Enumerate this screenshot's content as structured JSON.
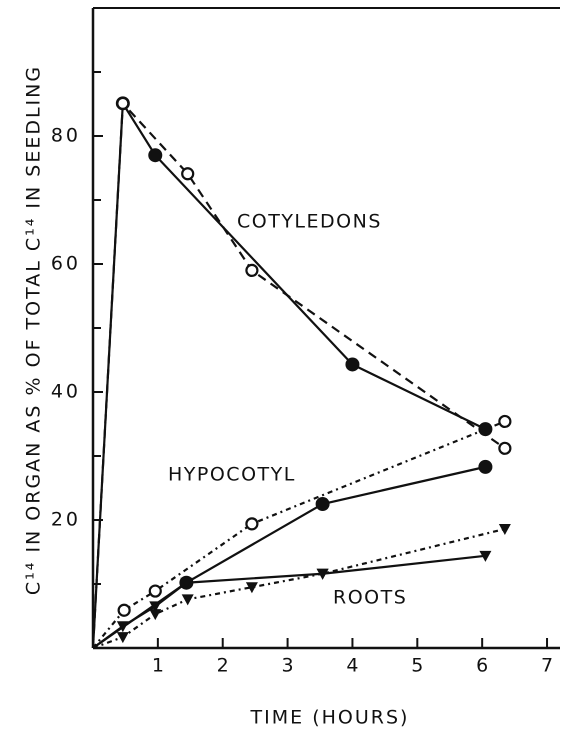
{
  "chart_data": {
    "type": "line",
    "xlabel": "TIME (HOURS)",
    "ylabel": "C¹⁴ IN ORGAN AS % OF TOTAL C¹⁴ IN SEEDLING",
    "xlim": [
      0,
      7.2
    ],
    "xticks": [
      1,
      2,
      3,
      4,
      5,
      6,
      7
    ],
    "ylim": [
      0,
      100
    ],
    "yticks": [
      20,
      40,
      60,
      80
    ],
    "yminor": [
      10,
      30,
      50,
      70,
      90
    ],
    "annotations": [
      "COTYLEDONS",
      "HYPOCOTYL",
      "ROOTS"
    ],
    "series": [
      {
        "color": "#111",
        "line": "solid",
        "marker": "filled-circle",
        "x": [
          0,
          0.46,
          0.96,
          4.0,
          6.05
        ],
        "values": [
          0,
          85.1,
          77,
          44.3,
          34.2
        ]
      },
      {
        "color": "#111",
        "line": "dashed",
        "marker": "open-circle",
        "x": [
          0,
          0.46,
          1.46,
          2.45,
          6.35
        ],
        "values": [
          0,
          85.1,
          74.1,
          59,
          31.2
        ]
      },
      {
        "color": "#111",
        "line": "solid",
        "marker": "filled-circle",
        "x": [
          0,
          1.44,
          3.54,
          6.05
        ],
        "values": [
          0,
          10.2,
          22.5,
          28.3
        ]
      },
      {
        "color": "#111",
        "line": "dotted",
        "marker": "open-circle",
        "x": [
          0,
          0.48,
          0.96,
          2.45,
          6.35
        ],
        "values": [
          0,
          5.9,
          8.9,
          19.4,
          35.4
        ]
      },
      {
        "color": "#111",
        "line": "solid",
        "marker": "triangle",
        "x": [
          0,
          0.46,
          0.96,
          1.44,
          3.54,
          6.05
        ],
        "values": [
          0,
          3.4,
          6.5,
          10.2,
          11.6,
          14.4
        ]
      },
      {
        "color": "#111",
        "line": "dotted",
        "marker": "triangle",
        "x": [
          0,
          0.46,
          0.96,
          1.46,
          2.45,
          3.54,
          6.35
        ],
        "values": [
          0,
          1.7,
          5.3,
          7.6,
          9.5,
          11.6,
          18.6
        ]
      }
    ]
  }
}
